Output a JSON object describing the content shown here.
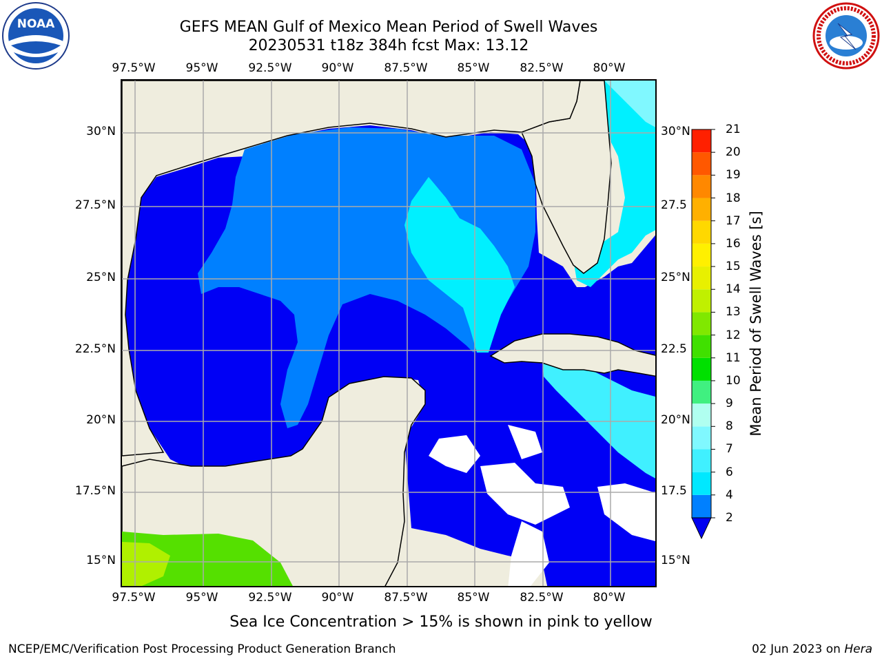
{
  "header": {
    "title_line1": "GEFS MEAN Gulf of Mexico Mean Period of Swell Waves",
    "title_line2": "20230531 t18z 384h fcst   Max: 13.12"
  },
  "map": {
    "lon_labels": [
      "97.5°W",
      "95°W",
      "92.5°W",
      "90°W",
      "87.5°W",
      "85°W",
      "82.5°W",
      "80°W"
    ],
    "lat_labels_left": [
      "30°N",
      "27.5°N",
      "25°N",
      "22.5°N",
      "20°N",
      "17.5°N",
      "15°N"
    ],
    "lat_labels_right": [
      "30°N",
      "27.5",
      "25°N",
      "22.5",
      "20°N",
      "17.5",
      "15°N"
    ],
    "land_color": "#efedde",
    "ocean_low_color": "#0000f5",
    "ocean_mid_color": "#0080ff",
    "ocean_high_color": "#00f0ff",
    "pacific_color": "#55e000"
  },
  "colorbar": {
    "title": "Mean Period of Swell Waves [s]",
    "levels": [
      "2",
      "4",
      "6",
      "7",
      "8",
      "9",
      "10",
      "11",
      "12",
      "13",
      "14",
      "15",
      "16",
      "17",
      "18",
      "19",
      "20",
      "21"
    ],
    "colors": [
      "#0080ff",
      "#00e8ff",
      "#40f0ff",
      "#80f8ff",
      "#b0fff0",
      "#40f080",
      "#00e000",
      "#40e000",
      "#80e800",
      "#c0f000",
      "#e8f000",
      "#fff000",
      "#ffd800",
      "#ffb000",
      "#ff8800",
      "#ff5800",
      "#ff2000"
    ],
    "extend_color": "#0000f0"
  },
  "footer": {
    "note": "Sea Ice Concentration > 15% is shown in pink to yellow",
    "left": "NCEP/EMC/Verification Post Processing Product Generation Branch",
    "right_prefix": "02 Jun 2023 on ",
    "right_host": "Hera"
  },
  "logos": {
    "noaa_text": "NOAA",
    "nws_ring_text": "NATIONAL WEATHER SERVICE"
  }
}
